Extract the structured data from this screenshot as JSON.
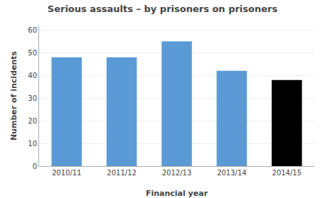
{
  "chart_data": {
    "type": "bar",
    "title": "Serious assaults – by prisoners on prisoners",
    "xlabel": "Financial year",
    "ylabel": "Number of incidents",
    "categories": [
      "2010/11",
      "2011/12",
      "2012/13",
      "2013/14",
      "2014/15"
    ],
    "values": [
      48,
      48,
      55,
      42,
      38
    ],
    "colors": [
      "#5b9bd5",
      "#5b9bd5",
      "#5b9bd5",
      "#5b9bd5",
      "#000000"
    ],
    "ylim": [
      0,
      62
    ],
    "yticks": [
      0,
      10,
      20,
      30,
      40,
      50,
      60
    ],
    "grid": true
  }
}
